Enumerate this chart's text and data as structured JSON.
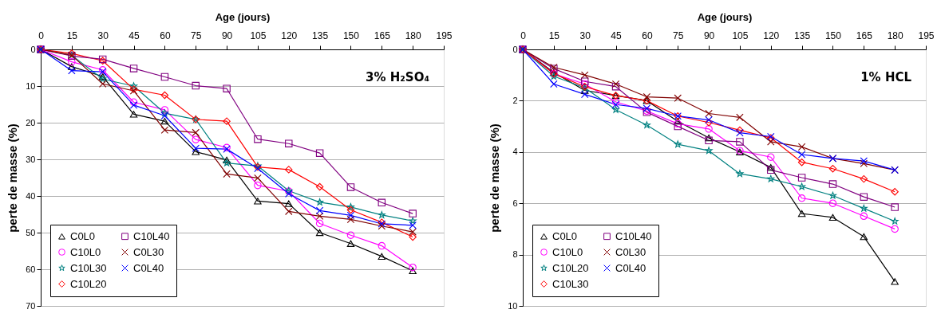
{
  "chart_data": [
    {
      "type": "line",
      "xlabel": "Age (jours)",
      "ylabel": "perte de masse (%)",
      "annotations": [
        "3% H₂SO₄"
      ],
      "x": [
        0,
        15,
        30,
        45,
        60,
        75,
        90,
        105,
        120,
        135,
        150,
        165,
        180
      ],
      "xlim": [
        0,
        195
      ],
      "xticks": [
        0,
        15,
        30,
        45,
        60,
        75,
        90,
        105,
        120,
        135,
        150,
        165,
        180,
        195
      ],
      "ylim": [
        70,
        0
      ],
      "yticks": [
        0,
        10,
        20,
        30,
        40,
        50,
        60,
        70
      ],
      "grid": "y",
      "legend": "bottom left",
      "series": [
        {
          "name": "C0L0",
          "color": "#000000",
          "marker": "triangle",
          "values": [
            0,
            4.7,
            7.4,
            17.7,
            19.6,
            27.9,
            30.2,
            41.4,
            42.1,
            50,
            53,
            56.5,
            60.4
          ]
        },
        {
          "name": "C10L0",
          "color": "#ff00ff",
          "marker": "circle",
          "values": [
            0,
            3.4,
            5.6,
            14.4,
            16.5,
            24.6,
            26.8,
            37.1,
            38.7,
            47.5,
            50.7,
            53.6,
            59.5
          ]
        },
        {
          "name": "C10L30",
          "color": "#008080",
          "marker": "star",
          "values": [
            0,
            1.6,
            8.1,
            10,
            17.4,
            19.1,
            31,
            31.8,
            38.6,
            41.7,
            43,
            45.2,
            46.8
          ]
        },
        {
          "name": "C10L20",
          "color": "#ff0000",
          "marker": "diamond",
          "values": [
            0,
            1.1,
            3.1,
            10.9,
            12.5,
            19.1,
            19.6,
            32.1,
            32.8,
            37.5,
            43.8,
            47.2,
            51.2
          ]
        },
        {
          "name": "C10L40",
          "color": "#800080",
          "marker": "square",
          "values": [
            0,
            1.8,
            2.7,
            5.2,
            7.5,
            9.9,
            10.7,
            24.5,
            25.7,
            28.3,
            37.6,
            41.8,
            44.8
          ]
        },
        {
          "name": "C0L30",
          "color": "#800000",
          "marker": "cross",
          "values": [
            0,
            1.6,
            9.4,
            11.3,
            22,
            22.7,
            34,
            35.1,
            44.2,
            45.5,
            46.4,
            48.2,
            49.8
          ]
        },
        {
          "name": "C0L40",
          "color": "#0000ff",
          "marker": "cross",
          "values": [
            0,
            5.8,
            6.1,
            15.2,
            18.1,
            27,
            27.2,
            32.5,
            39.4,
            44,
            45.3,
            47.6,
            48
          ]
        }
      ]
    },
    {
      "type": "line",
      "xlabel": "Age (jours)",
      "ylabel": "perte de masse (%)",
      "annotations": [
        "1% HCL"
      ],
      "x": [
        0,
        15,
        30,
        45,
        60,
        75,
        90,
        105,
        120,
        135,
        150,
        165,
        180
      ],
      "xlim": [
        0,
        195
      ],
      "xticks": [
        0,
        15,
        30,
        45,
        60,
        75,
        90,
        105,
        120,
        135,
        150,
        165,
        180,
        195
      ],
      "ylim": [
        10,
        0
      ],
      "yticks": [
        0,
        2,
        4,
        6,
        8,
        10
      ],
      "grid": "y",
      "legend": "bottom left",
      "series": [
        {
          "name": "C0L0",
          "color": "#000000",
          "marker": "triangle",
          "values": [
            0,
            0.9,
            1.6,
            1.8,
            2.0,
            2.8,
            3.45,
            4.0,
            4.6,
            6.4,
            6.55,
            7.3,
            9.05
          ]
        },
        {
          "name": "C10L0",
          "color": "#ff00ff",
          "marker": "circle",
          "values": [
            0,
            0.95,
            1.35,
            2.05,
            2.4,
            2.9,
            3.1,
            3.95,
            4.2,
            5.8,
            6.0,
            6.5,
            7.0
          ]
        },
        {
          "name": "C10L20",
          "color": "#008080",
          "marker": "star",
          "values": [
            0,
            1.05,
            1.5,
            2.35,
            2.95,
            3.7,
            3.95,
            4.85,
            5.05,
            5.35,
            5.7,
            6.2,
            6.7
          ]
        },
        {
          "name": "C10L30",
          "color": "#ff0000",
          "marker": "diamond",
          "values": [
            0,
            0.95,
            1.45,
            1.8,
            2.0,
            2.6,
            2.85,
            3.15,
            3.45,
            4.4,
            4.65,
            5.05,
            5.55
          ]
        },
        {
          "name": "C10L40",
          "color": "#800080",
          "marker": "square",
          "values": [
            0,
            0.75,
            1.25,
            1.45,
            2.45,
            3.0,
            3.55,
            3.6,
            4.7,
            5.0,
            5.25,
            5.75,
            6.15
          ]
        },
        {
          "name": "C0L30",
          "color": "#800000",
          "marker": "cross",
          "values": [
            0,
            0.7,
            1.0,
            1.35,
            1.85,
            1.9,
            2.5,
            2.65,
            3.6,
            3.8,
            4.25,
            4.45,
            4.7
          ]
        },
        {
          "name": "C0L40",
          "color": "#0000ff",
          "marker": "cross",
          "values": [
            0,
            1.35,
            1.75,
            2.15,
            2.3,
            2.6,
            2.75,
            3.25,
            3.4,
            4.1,
            4.25,
            4.35,
            4.7
          ]
        }
      ]
    }
  ]
}
